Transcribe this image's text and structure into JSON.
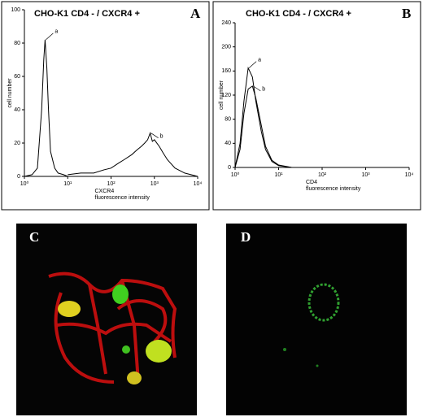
{
  "chart_data": [
    {
      "type": "line",
      "label": "A",
      "title": "CHO-K1 CD4 - / CXCR4 +",
      "ylabel": "cell number",
      "xlabel": [
        "CXCR4",
        "fluorescence intensity"
      ],
      "log_x": true,
      "xlim": [
        1,
        10000
      ],
      "xticks": [
        {
          "value": 1,
          "label": "10⁰"
        },
        {
          "value": 10,
          "label": "10¹"
        },
        {
          "value": 100,
          "label": "10²"
        },
        {
          "value": 1000,
          "label": "10³"
        },
        {
          "value": 10000,
          "label": "10⁴"
        }
      ],
      "ylim": [
        0,
        100
      ],
      "yticks": [
        0,
        20,
        40,
        60,
        80,
        100
      ],
      "series": [
        {
          "name": "a",
          "color": "#000000",
          "x": [
            1,
            1.5,
            2,
            2.5,
            2.8,
            3,
            3.3,
            3.6,
            4,
            5,
            6,
            8,
            10
          ],
          "values": [
            0,
            1,
            5,
            40,
            70,
            82,
            65,
            40,
            15,
            5,
            2,
            1,
            0
          ]
        },
        {
          "name": "b",
          "color": "#000000",
          "x": [
            10,
            20,
            40,
            70,
            100,
            150,
            200,
            300,
            400,
            500,
            600,
            700,
            800,
            900,
            1000,
            1300,
            1600,
            2000,
            3000,
            5000,
            10000
          ],
          "values": [
            1,
            2,
            2,
            4,
            5,
            8,
            10,
            13,
            16,
            18,
            20,
            22,
            26,
            21,
            22,
            18,
            14,
            10,
            5,
            2,
            0
          ]
        }
      ]
    },
    {
      "type": "line",
      "label": "B",
      "title": "CHO-K1 CD4 - / CXCR4 +",
      "ylabel": "cell number",
      "xlabel": [
        "CD4",
        "fluorescence intensity"
      ],
      "log_x": true,
      "xlim": [
        1,
        10000
      ],
      "xticks": [
        {
          "value": 1,
          "label": "10⁰"
        },
        {
          "value": 10,
          "label": "10¹"
        },
        {
          "value": 100,
          "label": "10²"
        },
        {
          "value": 1000,
          "label": "10³"
        },
        {
          "value": 10000,
          "label": "10⁴"
        }
      ],
      "ylim": [
        0,
        240
      ],
      "yticks": [
        0,
        40,
        80,
        120,
        160,
        200,
        240
      ],
      "series": [
        {
          "name": "a",
          "color": "#000000",
          "x": [
            1,
            1.3,
            1.6,
            2,
            2.5,
            3,
            4,
            5,
            7,
            10,
            20
          ],
          "values": [
            0,
            40,
            110,
            165,
            150,
            110,
            60,
            30,
            10,
            3,
            0
          ]
        },
        {
          "name": "b",
          "color": "#000000",
          "x": [
            1,
            1.3,
            1.6,
            2,
            2.5,
            3,
            4,
            5,
            7,
            10,
            20
          ],
          "values": [
            0,
            30,
            90,
            130,
            135,
            115,
            70,
            35,
            12,
            4,
            0
          ]
        }
      ]
    }
  ],
  "images": [
    {
      "label": "C"
    },
    {
      "label": "D"
    }
  ]
}
